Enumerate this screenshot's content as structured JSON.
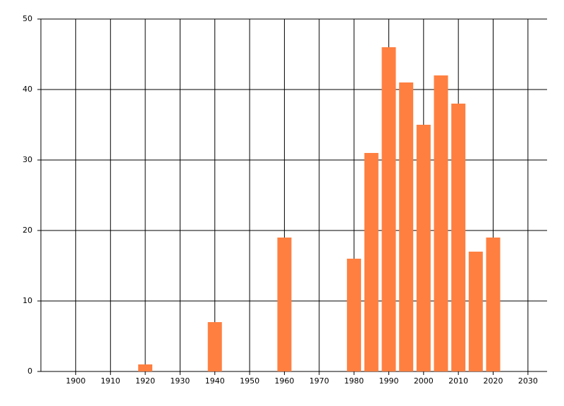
{
  "chart_data": {
    "type": "bar",
    "x": [
      1920,
      1940,
      1960,
      1980,
      1985,
      1990,
      1995,
      2000,
      2005,
      2010,
      2015,
      2020
    ],
    "values": [
      1,
      7,
      19,
      16,
      31,
      46,
      41,
      35,
      42,
      38,
      17,
      19
    ],
    "color": "#ff7f40",
    "xlim": [
      1890,
      2035.5
    ],
    "xticks": [
      1900,
      1910,
      1920,
      1930,
      1940,
      1950,
      1960,
      1970,
      1980,
      1990,
      2000,
      2010,
      2020,
      2030
    ],
    "ylim": [
      0,
      50
    ],
    "yticks": [
      0,
      10,
      20,
      30,
      40,
      50
    ],
    "grid": true
  }
}
